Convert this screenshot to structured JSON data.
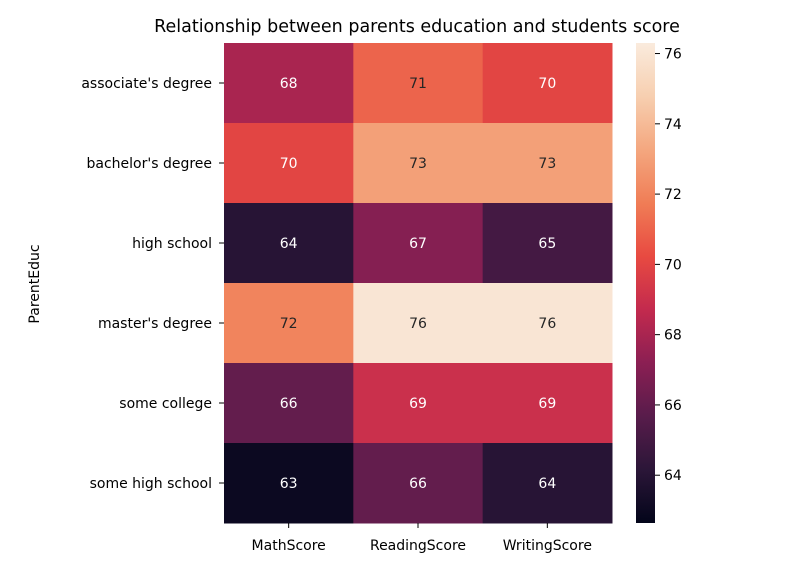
{
  "chart_data": {
    "type": "heatmap",
    "title": "Relationship between parents education and students score",
    "ylabel": "ParentEduc",
    "xlabel": "",
    "columns": [
      "MathScore",
      "ReadingScore",
      "WritingScore"
    ],
    "rows": [
      "associate's degree",
      "bachelor's degree",
      "high school",
      "master's degree",
      "some college",
      "some high school"
    ],
    "values": [
      [
        68,
        71,
        70
      ],
      [
        70,
        73,
        73
      ],
      [
        64,
        67,
        65
      ],
      [
        72,
        76,
        76
      ],
      [
        66,
        69,
        69
      ],
      [
        63,
        66,
        64
      ]
    ],
    "annotation_precision": 0,
    "colorbar": {
      "ticks": [
        64,
        66,
        68,
        70,
        72,
        74,
        76
      ],
      "vmin": 62.64,
      "vmax": 76.3
    },
    "colormap": "rocket",
    "colormap_stops": [
      "#03051a",
      "#2b1638",
      "#581c4b",
      "#8b1f53",
      "#c32a4e",
      "#e84a41",
      "#f07d56",
      "#f4a77f",
      "#f7cfb0",
      "#faebdd"
    ]
  }
}
